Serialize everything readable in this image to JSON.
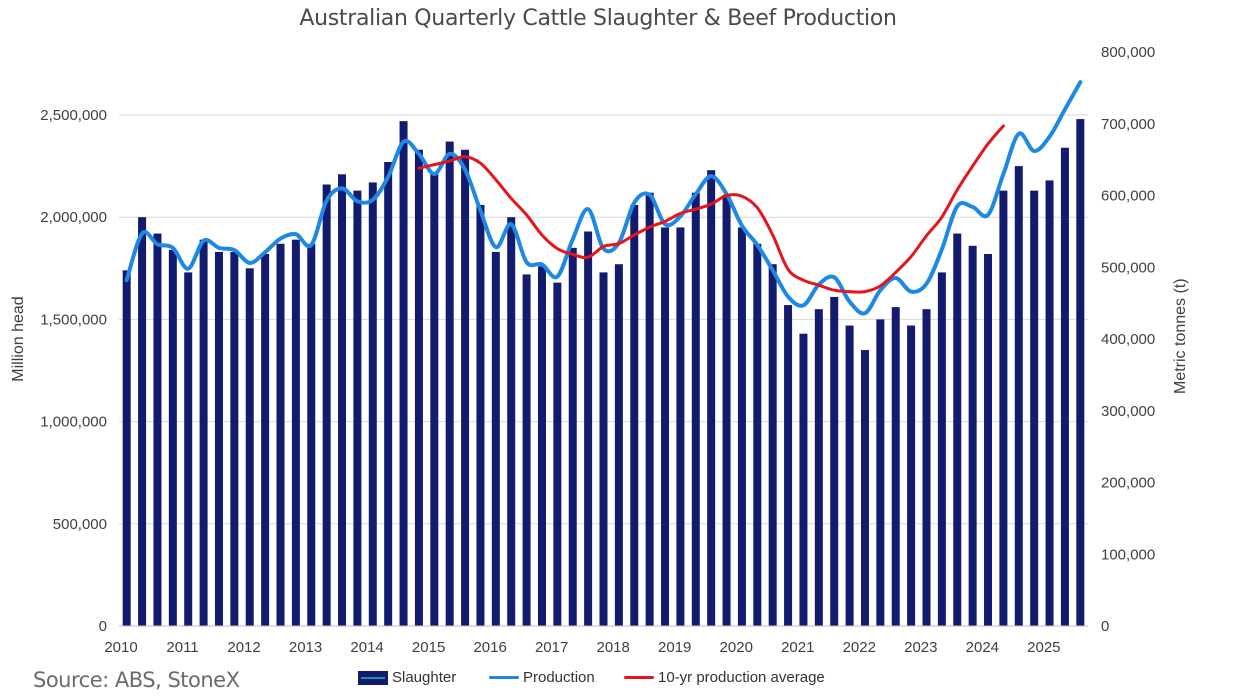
{
  "title": "Australian Quarterly Cattle Slaughter & Beef Production",
  "source": "Source: ABS, StoneX",
  "colors": {
    "slaughter": "#131B6E",
    "production": "#1E88E5",
    "average": "#E8141B"
  },
  "chart_data": {
    "type": "bar",
    "title": "Australian Quarterly Cattle Slaughter & Beef Production",
    "ylabel": "Million head",
    "y2label": "Metric tonnes (t)",
    "ylim": [
      0,
      2500000
    ],
    "y2lim": [
      0,
      800000
    ],
    "yticks": [
      "0",
      "500,000",
      "1,000,000",
      "1,500,000",
      "2,000,000",
      "2,500,000"
    ],
    "y2ticks": [
      "0",
      "100,000",
      "200,000",
      "300,000",
      "400,000",
      "500,000",
      "600,000",
      "700,000",
      "800,000"
    ],
    "xticks": [
      "2010",
      "2011",
      "2012",
      "2013",
      "2014",
      "2015",
      "2016",
      "2017",
      "2018",
      "2019",
      "2020",
      "2021",
      "2022",
      "2023",
      "2024",
      "2025"
    ],
    "grid": true,
    "legend_position": "bottom",
    "series": [
      {
        "name": "Slaughter",
        "type": "bar",
        "axis": "left",
        "values": [
          1740000,
          2000000,
          1920000,
          1840000,
          1730000,
          1890000,
          1830000,
          1830000,
          1750000,
          1820000,
          1870000,
          1890000,
          1870000,
          2160000,
          2210000,
          2130000,
          2170000,
          2270000,
          2470000,
          2330000,
          2210000,
          2370000,
          2330000,
          2060000,
          1830000,
          2000000,
          1720000,
          1760000,
          1680000,
          1850000,
          1930000,
          1730000,
          1770000,
          2060000,
          2120000,
          1950000,
          1950000,
          2120000,
          2230000,
          2110000,
          1950000,
          1870000,
          1770000,
          1570000,
          1430000,
          1550000,
          1610000,
          1470000,
          1350000,
          1500000,
          1560000,
          1470000,
          1550000,
          1730000,
          1920000,
          1860000,
          1820000,
          2130000,
          2250000,
          2130000,
          2180000,
          2340000,
          2480000
        ]
      },
      {
        "name": "Production",
        "type": "line",
        "axis": "right",
        "values": [
          482000,
          547000,
          532000,
          527000,
          498000,
          537000,
          527000,
          524000,
          506000,
          521000,
          540000,
          546000,
          531000,
          593000,
          610000,
          592000,
          594000,
          626000,
          675000,
          658000,
          630000,
          658000,
          636000,
          579000,
          528000,
          560000,
          507000,
          504000,
          487000,
          539000,
          581000,
          526000,
          534000,
          590000,
          601000,
          560000,
          571000,
          602000,
          627000,
          602000,
          558000,
          531000,
          496000,
          459000,
          447000,
          476000,
          486000,
          452000,
          436000,
          468000,
          485000,
          466000,
          477000,
          525000,
          585000,
          584000,
          573000,
          630000,
          686000,
          662000,
          682000,
          720000,
          758000
        ]
      },
      {
        "name": "10-yr production average",
        "type": "line",
        "axis": "right",
        "start_index": 19,
        "values": [
          638000,
          643000,
          648000,
          654000,
          645000,
          622000,
          596000,
          573000,
          545000,
          526000,
          518000,
          514000,
          529000,
          533000,
          545000,
          556000,
          564000,
          575000,
          581000,
          588000,
          600000,
          599000,
          583000,
          545000,
          497000,
          482000,
          475000,
          468000,
          466000,
          466000,
          474000,
          493000,
          515000,
          544000,
          570000,
          608000,
          641000,
          672000,
          697000
        ]
      }
    ]
  }
}
